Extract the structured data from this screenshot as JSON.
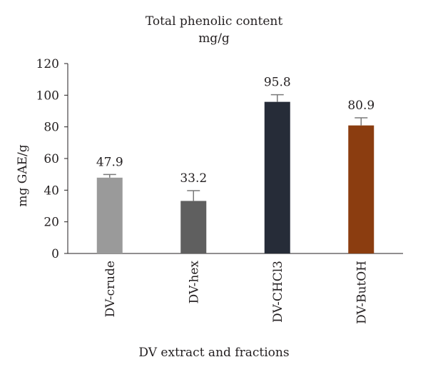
{
  "chart_data": {
    "type": "bar",
    "title": "Total phenolic content",
    "subtitle": "mg/g",
    "xlabel": "DV extract and fractions",
    "ylabel": "mg GAE/g",
    "ylim": [
      0,
      120
    ],
    "yticks": [
      0,
      20,
      40,
      60,
      80,
      100,
      120
    ],
    "grid": false,
    "categories": [
      "DV-crude",
      "DV-hex",
      "DV-CHCl3",
      "DV-ButOH"
    ],
    "values": [
      47.9,
      33.2,
      95.8,
      80.9
    ],
    "data_labels": [
      "47.9",
      "33.2",
      "95.8",
      "80.9"
    ],
    "error": [
      2.0,
      6.5,
      4.5,
      4.8
    ],
    "colors": [
      "#9a9a9a",
      "#5f5f5f",
      "#262c38",
      "#8b3d10"
    ]
  }
}
